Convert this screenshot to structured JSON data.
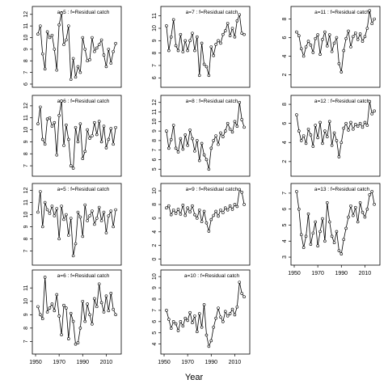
{
  "figure": {
    "xlabel": "Year"
  },
  "chart_data": [
    {
      "type": "line",
      "title": "a=5 : f=Residual catch",
      "xlabel": "",
      "ylabel": "",
      "ylim": [
        6,
        12.4
      ],
      "yticks": [
        6,
        7,
        8,
        9,
        10,
        11,
        12
      ],
      "xticks": [],
      "xlim": [
        1950,
        2020
      ],
      "x": [
        1952,
        1954,
        1956,
        1958,
        1960,
        1962,
        1964,
        1966,
        1968,
        1970,
        1972,
        1974,
        1976,
        1978,
        1980,
        1982,
        1984,
        1986,
        1988,
        1990,
        1992,
        1994,
        1996,
        1998,
        2000,
        2002,
        2004,
        2006,
        2008,
        2010,
        2012,
        2014,
        2016,
        2018
      ],
      "series": [
        {
          "values": [
            10.3,
            11.0,
            8.6,
            7.3,
            10.5,
            10.0,
            10.2,
            9.0,
            7.2,
            11.1,
            12.1,
            9.4,
            9.8,
            11.0,
            6.4,
            8.2,
            6.6,
            7.5,
            7.0,
            10.0,
            9.0,
            8.0,
            8.1,
            10.0,
            8.8,
            9.1,
            9.4,
            9.8,
            8.5,
            7.5,
            9.0,
            7.8,
            8.8,
            9.5
          ]
        }
      ]
    },
    {
      "type": "line",
      "title": "a=6 : f=Residual catch",
      "xlabel": "",
      "ylabel": "",
      "ylim": [
        6.4,
        12.6
      ],
      "yticks": [
        7,
        8,
        9,
        10,
        11,
        12
      ],
      "xticks": [],
      "xlim": [
        1950,
        2020
      ],
      "x": [
        1952,
        1954,
        1956,
        1958,
        1960,
        1962,
        1964,
        1966,
        1968,
        1970,
        1972,
        1974,
        1976,
        1978,
        1980,
        1982,
        1984,
        1986,
        1988,
        1990,
        1992,
        1994,
        1996,
        1998,
        2000,
        2002,
        2004,
        2006,
        2008,
        2010,
        2012,
        2014,
        2016,
        2018
      ],
      "series": [
        {
          "values": [
            10.5,
            11.9,
            9.2,
            8.8,
            10.9,
            11.0,
            10.3,
            10.6,
            7.9,
            11.2,
            12.4,
            8.7,
            10.4,
            9.2,
            7.0,
            6.8,
            10.2,
            9.0,
            10.5,
            7.6,
            8.2,
            10.0,
            9.3,
            9.5,
            10.6,
            9.6,
            10.7,
            9.0,
            10.3,
            8.5,
            9.2,
            10.1,
            8.8,
            10.2
          ]
        }
      ]
    },
    {
      "type": "line",
      "title": "a=5 : f=Residual catch",
      "xlabel": "",
      "ylabel": "",
      "ylim": [
        6.1,
        12.3
      ],
      "yticks": [
        7,
        8,
        9,
        10,
        11,
        12
      ],
      "xticks": [],
      "xlim": [
        1950,
        2020
      ],
      "x": [
        1952,
        1954,
        1956,
        1958,
        1960,
        1962,
        1964,
        1966,
        1968,
        1970,
        1972,
        1974,
        1976,
        1978,
        1980,
        1982,
        1984,
        1986,
        1988,
        1990,
        1992,
        1994,
        1996,
        1998,
        2000,
        2002,
        2004,
        2006,
        2008,
        2010,
        2012,
        2014,
        2016,
        2018
      ],
      "series": [
        {
          "values": [
            10.2,
            11.9,
            9.0,
            11.0,
            10.4,
            10.1,
            10.7,
            9.9,
            10.5,
            8.0,
            10.7,
            9.6,
            10.0,
            8.3,
            9.7,
            6.6,
            7.6,
            10.2,
            9.8,
            8.2,
            10.8,
            9.5,
            9.9,
            10.3,
            9.2,
            9.7,
            10.6,
            9.5,
            10.2,
            8.5,
            9.9,
            10.3,
            9.0,
            10.4
          ]
        }
      ]
    },
    {
      "type": "line",
      "title": "a=6 : f=Residual catch",
      "xlabel": "",
      "ylabel": "",
      "ylim": [
        6.3,
        12.1
      ],
      "yticks": [
        7,
        8,
        9,
        10,
        11
      ],
      "xticks": [
        1950,
        1970,
        1990,
        2010
      ],
      "xlim": [
        1950,
        2020
      ],
      "x": [
        1952,
        1954,
        1956,
        1958,
        1960,
        1962,
        1964,
        1966,
        1968,
        1970,
        1972,
        1974,
        1976,
        1978,
        1980,
        1982,
        1984,
        1986,
        1988,
        1990,
        1992,
        1994,
        1996,
        1998,
        2000,
        2002,
        2004,
        2006,
        2008,
        2010,
        2012,
        2014,
        2016,
        2018
      ],
      "series": [
        {
          "values": [
            9.6,
            9.0,
            8.7,
            11.8,
            9.2,
            9.5,
            9.8,
            9.3,
            10.5,
            8.9,
            7.5,
            9.7,
            9.5,
            7.2,
            9.1,
            8.5,
            6.8,
            6.9,
            8.0,
            10.0,
            8.5,
            9.8,
            9.0,
            8.3,
            10.2,
            9.6,
            11.3,
            9.9,
            9.2,
            10.4,
            9.3,
            10.6,
            9.4,
            9.0
          ]
        }
      ]
    },
    {
      "type": "line",
      "title": "a=7 : f=Residual catch",
      "xlabel": "",
      "ylabel": "",
      "ylim": [
        5.5,
        11.5
      ],
      "yticks": [
        6,
        7,
        8,
        9,
        10,
        11
      ],
      "xticks": [],
      "xlim": [
        1950,
        2020
      ],
      "x": [
        1952,
        1954,
        1956,
        1958,
        1960,
        1962,
        1964,
        1966,
        1968,
        1970,
        1972,
        1974,
        1976,
        1978,
        1980,
        1982,
        1984,
        1986,
        1988,
        1990,
        1992,
        1994,
        1996,
        1998,
        2000,
        2002,
        2004,
        2006,
        2008,
        2010,
        2012,
        2014,
        2016,
        2018
      ],
      "series": [
        {
          "values": [
            10.2,
            8.2,
            9.3,
            10.7,
            8.6,
            8.2,
            9.5,
            8.1,
            9.0,
            8.2,
            9.0,
            9.6,
            8.2,
            9.3,
            6.2,
            8.8,
            7.1,
            6.9,
            6.2,
            8.5,
            7.8,
            8.7,
            9.0,
            8.8,
            9.5,
            9.8,
            10.4,
            9.4,
            10.0,
            9.3,
            10.6,
            11.1,
            9.6,
            9.5
          ]
        }
      ]
    },
    {
      "type": "line",
      "title": "a=8 : f=Residual catch",
      "xlabel": "",
      "ylabel": "",
      "ylim": [
        4.6,
        12.4
      ],
      "yticks": [
        5,
        6,
        7,
        8,
        9,
        10,
        11,
        12
      ],
      "xticks": [],
      "xlim": [
        1950,
        2020
      ],
      "x": [
        1952,
        1954,
        1956,
        1958,
        1960,
        1962,
        1964,
        1966,
        1968,
        1970,
        1972,
        1974,
        1976,
        1978,
        1980,
        1982,
        1984,
        1986,
        1988,
        1990,
        1992,
        1994,
        1996,
        1998,
        2000,
        2002,
        2004,
        2006,
        2008,
        2010,
        2012,
        2014,
        2016,
        2018
      ],
      "series": [
        {
          "values": [
            9.0,
            7.2,
            8.1,
            9.6,
            7.2,
            6.8,
            8.2,
            7.1,
            8.6,
            7.5,
            9.1,
            8.2,
            6.9,
            8.0,
            5.9,
            7.7,
            6.5,
            6.0,
            5.0,
            7.2,
            8.0,
            8.5,
            7.6,
            8.8,
            8.4,
            9.0,
            9.8,
            9.2,
            8.9,
            10.0,
            9.5,
            12.0,
            10.2,
            9.4
          ]
        }
      ]
    },
    {
      "type": "line",
      "title": "a=9 : f=Residual catch",
      "xlabel": "",
      "ylabel": "",
      "ylim": [
        -0.4,
        10.6
      ],
      "yticks": [
        0,
        2,
        4,
        6,
        8,
        10
      ],
      "xticks": [],
      "xlim": [
        1950,
        2020
      ],
      "x": [
        1952,
        1954,
        1956,
        1958,
        1960,
        1962,
        1964,
        1966,
        1968,
        1970,
        1972,
        1974,
        1976,
        1978,
        1980,
        1982,
        1984,
        1986,
        1988,
        1990,
        1992,
        1994,
        1996,
        1998,
        2000,
        2002,
        2004,
        2006,
        2008,
        2010,
        2012,
        2014,
        2016,
        2018
      ],
      "series": [
        {
          "values": [
            7.5,
            7.8,
            6.5,
            7.2,
            6.7,
            7.3,
            6.6,
            7.9,
            6.4,
            7.5,
            6.9,
            7.8,
            6.5,
            6.0,
            7.2,
            5.5,
            7.0,
            5.3,
            4.1,
            5.8,
            6.4,
            7.0,
            6.3,
            7.2,
            6.8,
            7.5,
            7.2,
            7.8,
            7.3,
            8.0,
            7.7,
            10.2,
            9.8,
            8.0
          ]
        }
      ]
    },
    {
      "type": "line",
      "title": "a=10 : f=Residual catch",
      "xlabel": "",
      "ylabel": "",
      "ylim": [
        3.4,
        10.3
      ],
      "yticks": [
        4,
        5,
        6,
        7,
        8,
        9,
        10
      ],
      "xticks": [
        1950,
        1970,
        1990,
        2010
      ],
      "xlim": [
        1950,
        2020
      ],
      "x": [
        1952,
        1954,
        1956,
        1958,
        1960,
        1962,
        1964,
        1966,
        1968,
        1970,
        1972,
        1974,
        1976,
        1978,
        1980,
        1982,
        1984,
        1986,
        1988,
        1990,
        1992,
        1994,
        1996,
        1998,
        2000,
        2002,
        2004,
        2006,
        2008,
        2010,
        2012,
        2014,
        2016,
        2018
      ],
      "series": [
        {
          "values": [
            7.0,
            6.2,
            5.4,
            6.0,
            5.8,
            5.2,
            6.0,
            5.6,
            6.3,
            6.1,
            6.8,
            5.9,
            6.5,
            5.1,
            6.7,
            5.5,
            7.5,
            4.8,
            3.8,
            4.3,
            5.5,
            6.3,
            7.2,
            6.4,
            6.0,
            6.9,
            6.5,
            6.7,
            7.1,
            6.6,
            7.3,
            9.5,
            8.5,
            8.2
          ]
        }
      ]
    },
    {
      "type": "line",
      "title": "a=11 : f=Residual catch",
      "xlabel": "",
      "ylabel": "",
      "ylim": [
        1.0,
        9.0
      ],
      "yticks": [
        2,
        4,
        6,
        8
      ],
      "xticks": [],
      "xlim": [
        1950,
        2020
      ],
      "x": [
        1952,
        1954,
        1956,
        1958,
        1960,
        1962,
        1964,
        1966,
        1968,
        1970,
        1972,
        1974,
        1976,
        1978,
        1980,
        1982,
        1984,
        1986,
        1988,
        1990,
        1992,
        1994,
        1996,
        1998,
        2000,
        2002,
        2004,
        2006,
        2008,
        2010,
        2012,
        2014,
        2016,
        2018
      ],
      "series": [
        {
          "values": [
            6.6,
            6.2,
            4.8,
            4.0,
            5.0,
            5.6,
            5.2,
            4.4,
            5.9,
            6.3,
            4.2,
            5.8,
            6.6,
            5.1,
            6.3,
            4.5,
            5.4,
            6.0,
            3.2,
            2.3,
            4.6,
            5.9,
            6.7,
            5.0,
            6.1,
            6.5,
            5.8,
            6.4,
            5.6,
            6.1,
            7.0,
            8.9,
            7.5,
            8.0
          ]
        }
      ]
    },
    {
      "type": "line",
      "title": "a=12 : f=Residual catch",
      "xlabel": "",
      "ylabel": "",
      "ylim": [
        0.8,
        8.6
      ],
      "yticks": [
        2,
        4,
        6,
        8
      ],
      "xticks": [],
      "xlim": [
        1950,
        2020
      ],
      "x": [
        1952,
        1954,
        1956,
        1958,
        1960,
        1962,
        1964,
        1966,
        1968,
        1970,
        1972,
        1974,
        1976,
        1978,
        1980,
        1982,
        1984,
        1986,
        1988,
        1990,
        1992,
        1994,
        1996,
        1998,
        2000,
        2002,
        2004,
        2006,
        2008,
        2010,
        2012,
        2014,
        2016,
        2018
      ],
      "series": [
        {
          "values": [
            6.9,
            5.2,
            4.2,
            4.7,
            3.9,
            5.4,
            4.8,
            3.6,
            5.8,
            4.5,
            6.1,
            3.9,
            5.2,
            4.6,
            6.2,
            3.7,
            5.0,
            4.2,
            2.5,
            4.0,
            5.5,
            6.0,
            5.3,
            6.1,
            5.4,
            5.9,
            5.7,
            6.0,
            5.6,
            6.1,
            5.8,
            8.3,
            7.0,
            7.3
          ]
        }
      ]
    },
    {
      "type": "line",
      "title": "a=13 : f=Residual catch",
      "xlabel": "",
      "ylabel": "",
      "ylim": [
        2.7,
        7.4
      ],
      "yticks": [
        3,
        4,
        5,
        6,
        7
      ],
      "xticks": [
        1950,
        1970,
        1990,
        2010
      ],
      "xlim": [
        1950,
        2020
      ],
      "x": [
        1952,
        1954,
        1956,
        1958,
        1960,
        1962,
        1964,
        1966,
        1968,
        1970,
        1972,
        1974,
        1976,
        1978,
        1980,
        1982,
        1984,
        1986,
        1988,
        1990,
        1992,
        1994,
        1996,
        1998,
        2000,
        2002,
        2004,
        2006,
        2008,
        2010,
        2012,
        2014,
        2016,
        2018
      ],
      "series": [
        {
          "values": [
            7.1,
            6.0,
            4.4,
            3.6,
            4.3,
            5.7,
            3.8,
            4.5,
            5.2,
            3.7,
            4.6,
            5.4,
            4.0,
            6.4,
            5.2,
            4.3,
            3.9,
            4.6,
            3.4,
            3.2,
            4.1,
            4.8,
            5.5,
            6.2,
            5.6,
            6.1,
            5.2,
            6.4,
            5.8,
            5.5,
            6.0,
            6.9,
            7.1,
            6.3
          ]
        }
      ]
    }
  ]
}
